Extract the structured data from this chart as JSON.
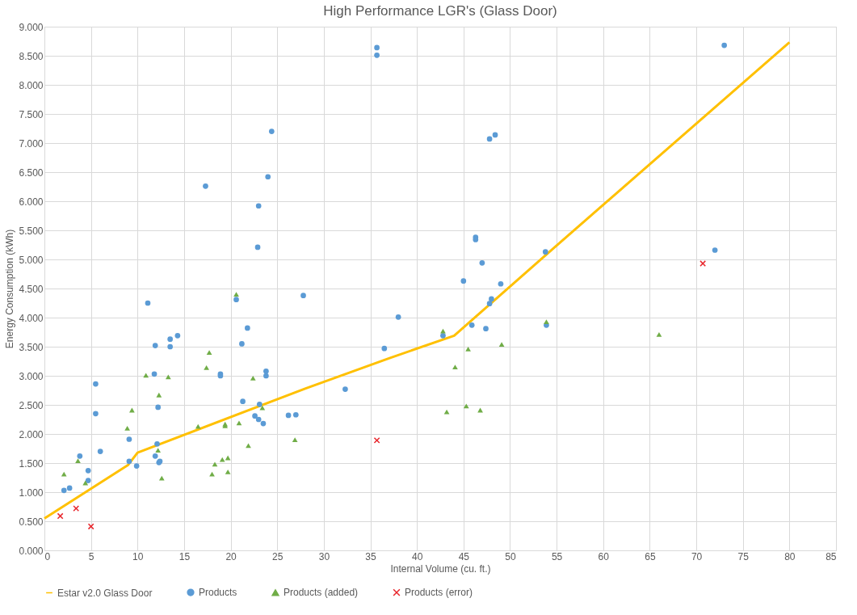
{
  "chart_data": {
    "type": "scatter",
    "title": "High Performance LGR's (Glass Door)",
    "xlabel": "Internal Volume (cu. ft.)",
    "ylabel": "Energy Consumption (kWh)",
    "xlim": [
      0,
      85
    ],
    "xticks": [
      0,
      5,
      10,
      15,
      20,
      25,
      30,
      35,
      40,
      45,
      50,
      55,
      60,
      65,
      70,
      75,
      80,
      85
    ],
    "ylim": [
      0,
      9
    ],
    "yticks": [
      {
        "value": 0,
        "label": "0.000"
      },
      {
        "value": 0.5,
        "label": "0.500"
      },
      {
        "value": 1,
        "label": "1.000"
      },
      {
        "value": 1.5,
        "label": "1.500"
      },
      {
        "value": 2,
        "label": "2.000"
      },
      {
        "value": 2.5,
        "label": "2.500"
      },
      {
        "value": 3,
        "label": "3.000"
      },
      {
        "value": 3.5,
        "label": "3.500"
      },
      {
        "value": 4,
        "label": "4.000"
      },
      {
        "value": 4.5,
        "label": "4.500"
      },
      {
        "value": 5,
        "label": "5.000"
      },
      {
        "value": 5.5,
        "label": "5.500"
      },
      {
        "value": 6,
        "label": "6.000"
      },
      {
        "value": 6.5,
        "label": "6.500"
      },
      {
        "value": 7,
        "label": "7.000"
      },
      {
        "value": 7.5,
        "label": "7.500"
      },
      {
        "value": 8,
        "label": "8.000"
      },
      {
        "value": 8.5,
        "label": "8.500"
      },
      {
        "value": 9,
        "label": "9.000"
      }
    ],
    "grid": true,
    "legend": "bottom",
    "series": [
      {
        "name": "Estar v2.0 Glass Door",
        "type": "line",
        "color": "#ffc000",
        "marker": "none",
        "x": [
          0,
          9,
          10,
          28,
          37,
          44,
          54.5,
          80
        ],
        "values": [
          0.55,
          1.47,
          1.68,
          2.78,
          3.3,
          3.69,
          5.17,
          8.73
        ]
      },
      {
        "name": "Products",
        "color": "#5b9bd5",
        "marker": "circle",
        "x": [
          2.1,
          2.7,
          3.8,
          4.7,
          4.7,
          5.5,
          5.5,
          6.0,
          9.1,
          9.1,
          9.9,
          11.1,
          11.8,
          11.9,
          11.9,
          12.1,
          12.2,
          12.3,
          12.4,
          13.5,
          13.5,
          14.3,
          18.9,
          18.9,
          20.6,
          21.2,
          21.8,
          21.3,
          22.6,
          23.0,
          23.5,
          23.1,
          23.8,
          23.8,
          27.8,
          22.9,
          26.2,
          27.0,
          17.3,
          24.4,
          24.0,
          23.0,
          35.7,
          35.7,
          47.8,
          48.4,
          46.3,
          46.3,
          47.0,
          45.0,
          49.0,
          48.0,
          47.8,
          45.9,
          47.4,
          42.8,
          38.0,
          36.5,
          32.3,
          53.8,
          53.9,
          73.0,
          72.0
        ],
        "values": [
          1.03,
          1.07,
          1.62,
          1.37,
          1.2,
          2.86,
          2.35,
          1.7,
          1.53,
          1.91,
          1.45,
          4.25,
          3.03,
          3.52,
          1.62,
          1.83,
          2.46,
          1.51,
          1.53,
          3.63,
          3.5,
          3.69,
          3.03,
          3.0,
          4.31,
          3.55,
          3.82,
          2.56,
          2.31,
          2.25,
          2.18,
          2.51,
          3.08,
          3.0,
          4.38,
          5.21,
          2.32,
          2.33,
          6.26,
          7.2,
          6.42,
          5.92,
          8.64,
          8.51,
          7.07,
          7.14,
          5.38,
          5.34,
          4.94,
          4.63,
          4.58,
          4.32,
          4.24,
          3.87,
          3.81,
          3.69,
          4.01,
          3.47,
          2.77,
          5.13,
          3.87,
          8.68,
          5.16
        ]
      },
      {
        "name": "Products (added)",
        "color": "#70ad47",
        "marker": "triangle",
        "x": [
          2.1,
          3.6,
          4.4,
          9.4,
          8.9,
          10.9,
          13.3,
          12.3,
          12.2,
          12.6,
          16.5,
          17.7,
          17.4,
          20.6,
          20.9,
          22.4,
          23.4,
          19.4,
          19.4,
          18.3,
          18.0,
          19.1,
          19.7,
          19.7,
          21.9,
          26.9,
          42.8,
          44.1,
          45.5,
          49.1,
          43.2,
          45.3,
          46.8,
          53.9,
          66.0
        ],
        "values": [
          1.31,
          1.54,
          1.16,
          2.41,
          2.1,
          3.01,
          2.98,
          2.67,
          1.72,
          1.24,
          2.13,
          3.4,
          3.14,
          4.4,
          2.19,
          2.96,
          2.45,
          2.14,
          2.17,
          1.48,
          1.31,
          1.56,
          1.59,
          1.35,
          1.8,
          1.9,
          3.77,
          3.15,
          3.46,
          3.54,
          2.38,
          2.48,
          2.41,
          3.93,
          3.71
        ]
      },
      {
        "name": "Products (error)",
        "color": "#e8262c",
        "marker": "cross",
        "x": [
          1.7,
          3.4,
          5.0,
          35.7,
          70.7
        ],
        "values": [
          0.59,
          0.72,
          0.41,
          1.89,
          4.93
        ]
      }
    ]
  }
}
